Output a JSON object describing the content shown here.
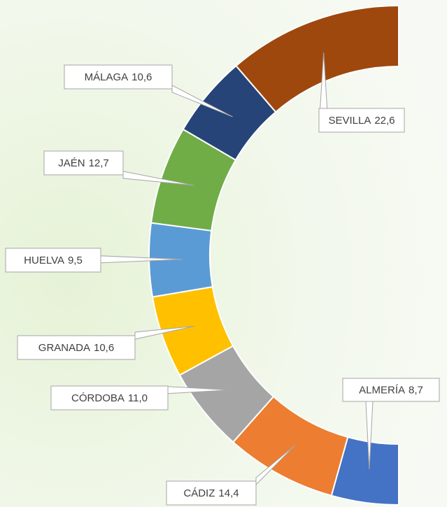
{
  "chart_data": {
    "type": "half-donut",
    "categories": [
      "ALMERÍA",
      "CÁDIZ",
      "CÓRDOBA",
      "GRANADA",
      "HUELVA",
      "JAÉN",
      "MÁLAGA",
      "SEVILLA"
    ],
    "values": [
      8.7,
      14.4,
      11.0,
      10.6,
      9.5,
      12.7,
      10.6,
      22.6
    ],
    "value_labels": [
      "8,7",
      "14,4",
      "11,0",
      "10,6",
      "9,5",
      "12,7",
      "10,6",
      "22,6"
    ],
    "colors": [
      "#4472c4",
      "#ed7d31",
      "#a5a5a5",
      "#ffc000",
      "#5b9bd5",
      "#70ad47",
      "#264478",
      "#9e480e"
    ]
  }
}
